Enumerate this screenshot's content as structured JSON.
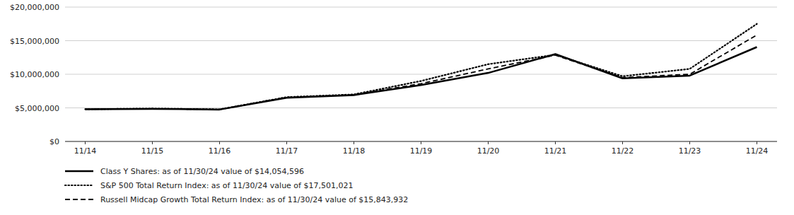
{
  "chart_data": {
    "type": "line",
    "categories": [
      "11/14",
      "11/15",
      "11/16",
      "11/17",
      "11/18",
      "11/19",
      "11/20",
      "11/21",
      "11/22",
      "11/23",
      "11/24"
    ],
    "series": [
      {
        "name": "Class Y Shares: as of 11/30/24 value of $14,054,596",
        "color": "#000000",
        "line_style": "solid",
        "values": [
          4800000,
          4850000,
          4750000,
          6500000,
          6900000,
          8400000,
          10200000,
          13000000,
          9400000,
          9800000,
          14054596
        ]
      },
      {
        "name": "S&P 500 Total Return Index: as of 11/30/24 value of $17,501,021",
        "color": "#000000",
        "line_style": "dotted",
        "values": [
          4800000,
          4900000,
          4780000,
          6600000,
          7000000,
          9000000,
          11500000,
          12900000,
          9700000,
          10800000,
          17501021
        ]
      },
      {
        "name": "Russell Midcap Growth Total Return Index: as of 11/30/24 value of $15,843,932",
        "color": "#000000",
        "line_style": "dashed",
        "values": [
          4800000,
          4870000,
          4760000,
          6550000,
          6950000,
          8600000,
          10800000,
          12850000,
          9500000,
          10000000,
          15843932
        ]
      }
    ],
    "ylim": [
      0,
      20000000
    ],
    "yticks": [
      {
        "value": 0,
        "label": "$0"
      },
      {
        "value": 5000000,
        "label": "$5,000,000"
      },
      {
        "value": 10000000,
        "label": "$10,000,000"
      },
      {
        "value": 15000000,
        "label": "$15,000,000"
      },
      {
        "value": 20000000,
        "label": "$20,000,000"
      }
    ],
    "grid": true,
    "legend": "bottom"
  }
}
